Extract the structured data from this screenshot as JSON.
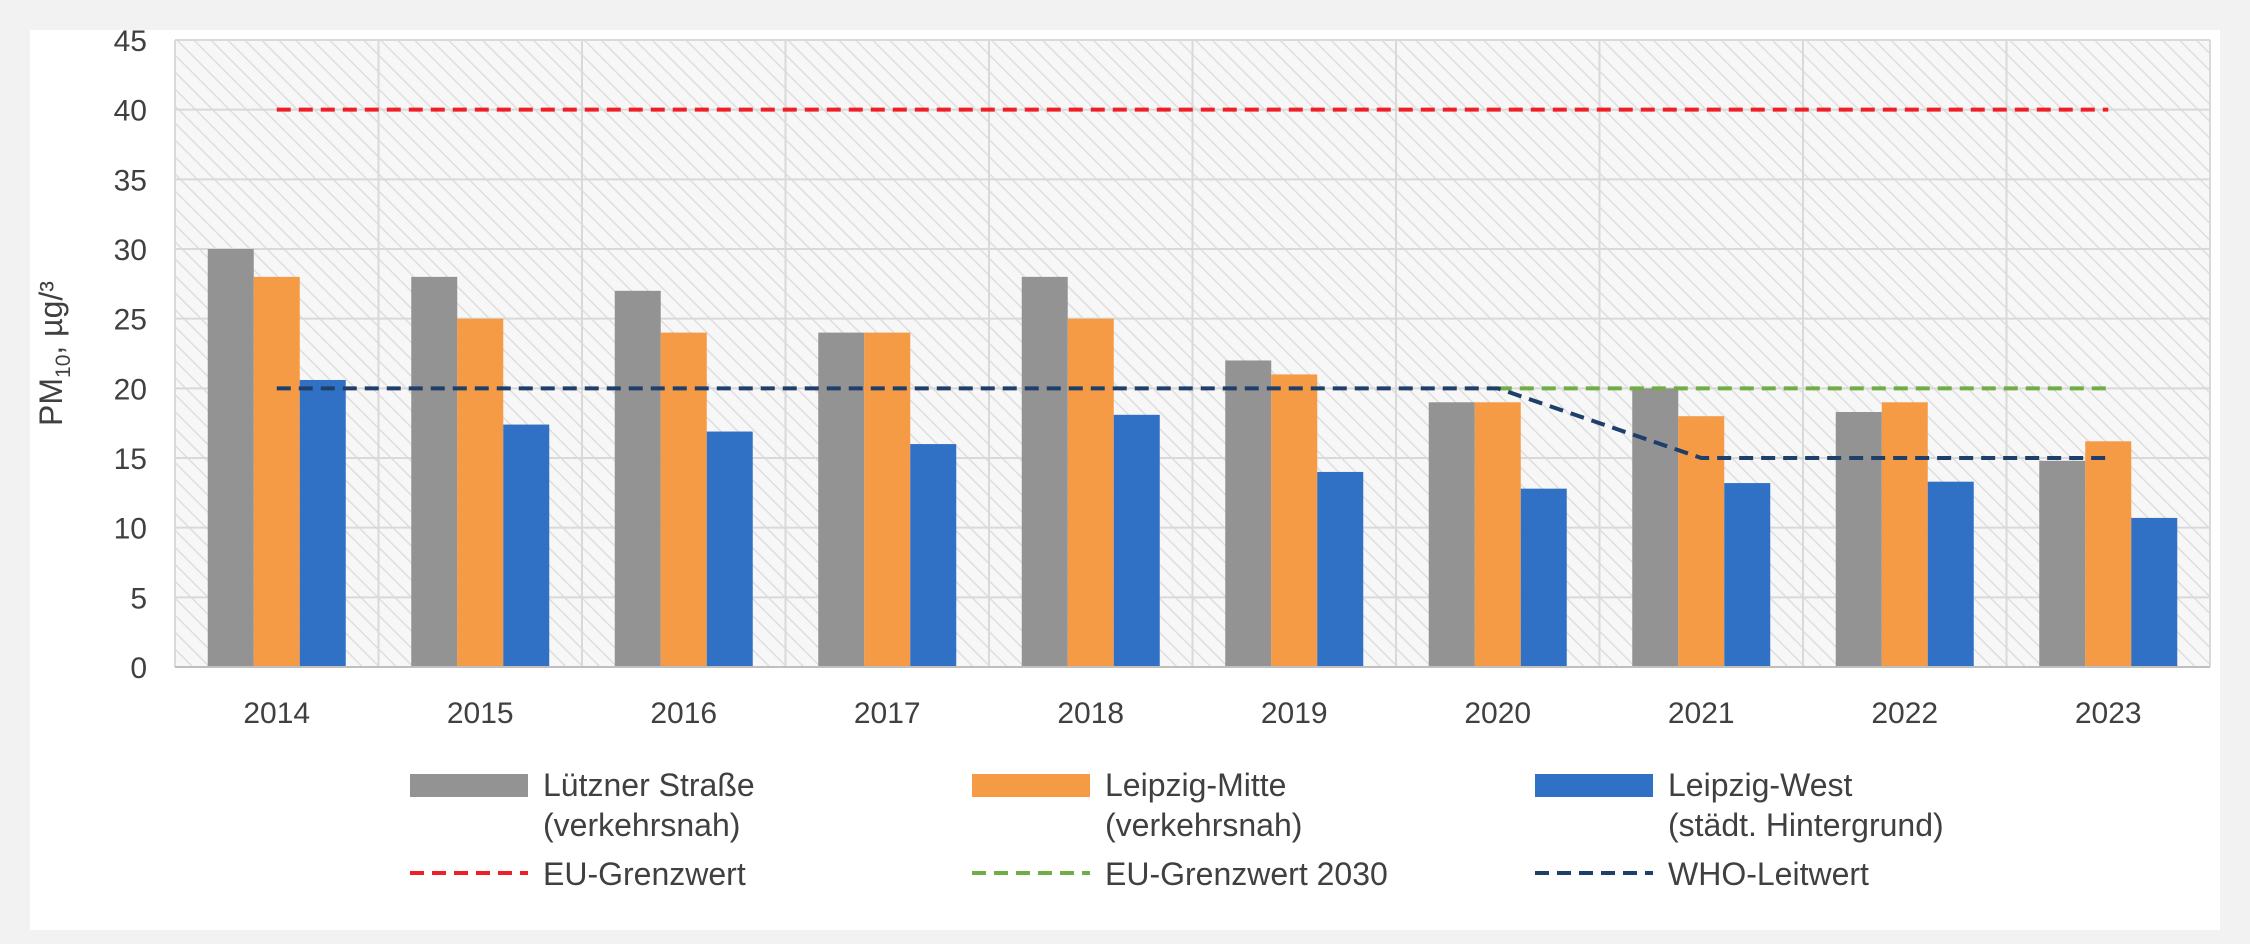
{
  "chart_data": {
    "type": "bar",
    "categories": [
      "2014",
      "2015",
      "2016",
      "2017",
      "2018",
      "2019",
      "2020",
      "2021",
      "2022",
      "2023"
    ],
    "ylabel": {
      "main": "PM",
      "sub": "10",
      "unit": ", µg/³"
    },
    "ylim": [
      0,
      45
    ],
    "yticks": [
      0,
      5,
      10,
      15,
      20,
      25,
      30,
      35,
      40,
      45
    ],
    "grid": true,
    "legend_position": "bottom",
    "series": [
      {
        "name_line1": "Lützner Straße",
        "name_line2": "(verkehrsnah)",
        "color": "#939393",
        "values": [
          30,
          28,
          27,
          24,
          28,
          22,
          19,
          20,
          18.3,
          14.8
        ]
      },
      {
        "name_line1": "Leipzig-Mitte",
        "name_line2": "(verkehrsnah)",
        "color": "#f59a45",
        "values": [
          28,
          25,
          24,
          24,
          25,
          21,
          19,
          18,
          19,
          16.2
        ]
      },
      {
        "name_line1": "Leipzig-West",
        "name_line2": "(städt. Hintergrund)",
        "color": "#3071c6",
        "values": [
          20.6,
          17.4,
          16.9,
          16,
          18.1,
          14,
          12.8,
          13.2,
          13.3,
          10.7
        ]
      }
    ],
    "lines": [
      {
        "name": "EU-Grenzwert",
        "color": "#ee1f26",
        "points": [
          [
            "2014",
            40
          ],
          [
            "2023",
            40
          ]
        ]
      },
      {
        "name": "EU-Grenzwert 2030",
        "color": "#70ad47",
        "points": [
          [
            "2020",
            20
          ],
          [
            "2023",
            20
          ]
        ]
      },
      {
        "name": "WHO-Leitwert",
        "color": "#1f3f6b",
        "points": [
          [
            "2014",
            20
          ],
          [
            "2020",
            20
          ],
          [
            "2021",
            15
          ],
          [
            "2023",
            15
          ]
        ]
      }
    ]
  }
}
